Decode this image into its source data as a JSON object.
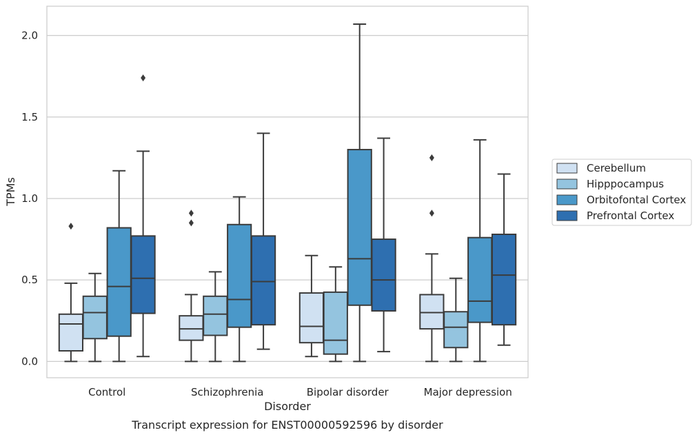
{
  "chart_data": {
    "type": "boxplot",
    "caption": "Transcript expression for ENST00000592596 by disorder",
    "xlabel": "Disorder",
    "ylabel": "TPMs",
    "ylim": [
      -0.1,
      2.18
    ],
    "yticks": [
      "0.0",
      "0.5",
      "1.0",
      "1.5",
      "2.0"
    ],
    "grid": "horizontal",
    "legend_position": "right",
    "categories": [
      "Control",
      "Schizophrenia",
      "Bipolar disorder",
      "Major depression"
    ],
    "series": [
      {
        "name": "Cerebellum",
        "color": "#d0e1f2",
        "boxes": [
          {
            "min": 0.0,
            "q1": 0.065,
            "median": 0.23,
            "q3": 0.29,
            "max": 0.48,
            "outliers": [
              0.83
            ]
          },
          {
            "min": 0.0,
            "q1": 0.13,
            "median": 0.2,
            "q3": 0.28,
            "max": 0.41,
            "outliers": [
              0.85,
              0.91
            ]
          },
          {
            "min": 0.03,
            "q1": 0.115,
            "median": 0.215,
            "q3": 0.42,
            "max": 0.65,
            "outliers": []
          },
          {
            "min": 0.0,
            "q1": 0.2,
            "median": 0.3,
            "q3": 0.41,
            "max": 0.66,
            "outliers": [
              0.91,
              1.25
            ]
          }
        ]
      },
      {
        "name": "Hipppocampus",
        "color": "#94c4df",
        "boxes": [
          {
            "min": 0.0,
            "q1": 0.14,
            "median": 0.3,
            "q3": 0.4,
            "max": 0.54,
            "outliers": []
          },
          {
            "min": 0.0,
            "q1": 0.16,
            "median": 0.29,
            "q3": 0.4,
            "max": 0.55,
            "outliers": []
          },
          {
            "min": 0.0,
            "q1": 0.045,
            "median": 0.13,
            "q3": 0.425,
            "max": 0.58,
            "outliers": []
          },
          {
            "min": 0.0,
            "q1": 0.085,
            "median": 0.21,
            "q3": 0.305,
            "max": 0.51,
            "outliers": []
          }
        ]
      },
      {
        "name": "Orbitofontal Cortex",
        "color": "#4a98c9",
        "boxes": [
          {
            "min": 0.0,
            "q1": 0.155,
            "median": 0.46,
            "q3": 0.82,
            "max": 1.17,
            "outliers": []
          },
          {
            "min": 0.0,
            "q1": 0.21,
            "median": 0.38,
            "q3": 0.84,
            "max": 1.01,
            "outliers": []
          },
          {
            "min": 0.0,
            "q1": 0.345,
            "median": 0.63,
            "q3": 1.3,
            "max": 2.07,
            "outliers": []
          },
          {
            "min": 0.0,
            "q1": 0.24,
            "median": 0.37,
            "q3": 0.76,
            "max": 1.36,
            "outliers": []
          }
        ]
      },
      {
        "name": "Prefrontal Cortex",
        "color": "#2e6fb0",
        "boxes": [
          {
            "min": 0.03,
            "q1": 0.295,
            "median": 0.51,
            "q3": 0.77,
            "max": 1.29,
            "outliers": [
              1.74
            ]
          },
          {
            "min": 0.075,
            "q1": 0.225,
            "median": 0.49,
            "q3": 0.77,
            "max": 1.4,
            "outliers": []
          },
          {
            "min": 0.06,
            "q1": 0.31,
            "median": 0.5,
            "q3": 0.75,
            "max": 1.37,
            "outliers": []
          },
          {
            "min": 0.1,
            "q1": 0.225,
            "median": 0.53,
            "q3": 0.78,
            "max": 1.15,
            "outliers": []
          }
        ]
      }
    ]
  }
}
